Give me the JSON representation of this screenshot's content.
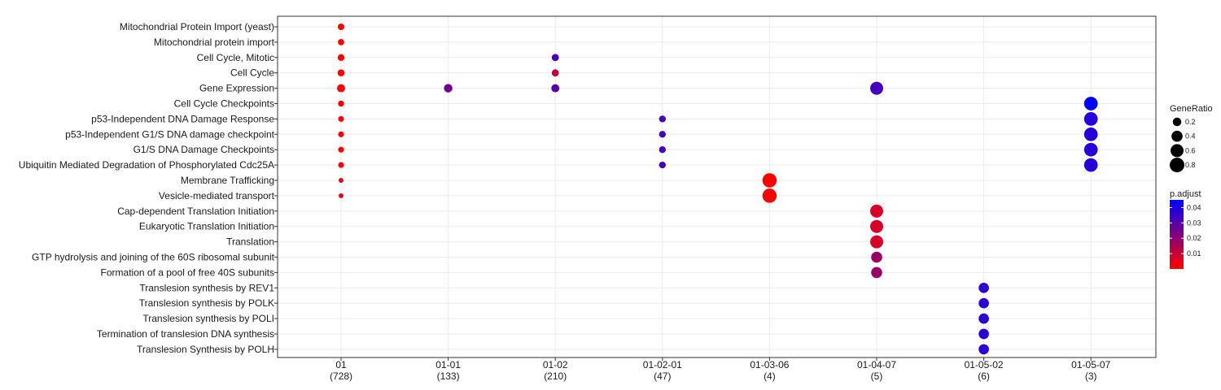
{
  "chart_data": {
    "type": "scatter",
    "title": "",
    "xlabel": "",
    "ylabel": "",
    "x_categories": [
      {
        "label": "01",
        "count": "(728)"
      },
      {
        "label": "01-01",
        "count": "(133)"
      },
      {
        "label": "01-02",
        "count": "(210)"
      },
      {
        "label": "01-02-01",
        "count": "(47)"
      },
      {
        "label": "01-03-06",
        "count": "(4)"
      },
      {
        "label": "01-04-07",
        "count": "(5)"
      },
      {
        "label": "01-05-02",
        "count": "(6)"
      },
      {
        "label": "01-05-07",
        "count": "(3)"
      }
    ],
    "y_categories": [
      "Mitochondrial Protein Import (yeast)",
      "Mitochondrial protein import",
      "Cell Cycle, Mitotic",
      "Cell Cycle",
      "Gene Expression",
      "Cell Cycle Checkpoints",
      "p53-Independent DNA Damage Response",
      "p53-Independent G1/S DNA damage checkpoint",
      "G1/S DNA Damage Checkpoints",
      "Ubiquitin Mediated Degradation of Phosphorylated Cdc25A",
      "Membrane Trafficking",
      "Vesicle-mediated transport",
      "Cap-dependent Translation Initiation",
      "Eukaryotic Translation Initiation",
      "Translation",
      "GTP hydrolysis and joining of the 60S ribosomal subunit",
      "Formation of a pool of free 40S subunits",
      "Translesion synthesis by REV1",
      "Translesion synthesis by POLK",
      "Translesion synthesis by POLI",
      "Termination of translesion DNA synthesis",
      "Translesion Synthesis by POLH"
    ],
    "points": [
      {
        "x": "01",
        "y": "Mitochondrial Protein Import (yeast)",
        "gene_ratio": 0.09,
        "p_adjust": 0.0005
      },
      {
        "x": "01",
        "y": "Mitochondrial protein import",
        "gene_ratio": 0.08,
        "p_adjust": 0.0005
      },
      {
        "x": "01",
        "y": "Cell Cycle, Mitotic",
        "gene_ratio": 0.1,
        "p_adjust": 0.0005
      },
      {
        "x": "01",
        "y": "Cell Cycle",
        "gene_ratio": 0.11,
        "p_adjust": 0.0005
      },
      {
        "x": "01",
        "y": "Gene Expression",
        "gene_ratio": 0.17,
        "p_adjust": 0.0005
      },
      {
        "x": "01",
        "y": "Cell Cycle Checkpoints",
        "gene_ratio": 0.07,
        "p_adjust": 0.0005
      },
      {
        "x": "01",
        "y": "p53-Independent DNA Damage Response",
        "gene_ratio": 0.06,
        "p_adjust": 0.0005
      },
      {
        "x": "01",
        "y": "p53-Independent G1/S DNA damage checkpoint",
        "gene_ratio": 0.06,
        "p_adjust": 0.0005
      },
      {
        "x": "01",
        "y": "G1/S DNA Damage Checkpoints",
        "gene_ratio": 0.06,
        "p_adjust": 0.0005
      },
      {
        "x": "01",
        "y": "Ubiquitin Mediated Degradation of Phosphorylated Cdc25A",
        "gene_ratio": 0.06,
        "p_adjust": 0.0005
      },
      {
        "x": "01",
        "y": "Membrane Trafficking",
        "gene_ratio": 0.03,
        "p_adjust": 0.005
      },
      {
        "x": "01",
        "y": "Vesicle-mediated transport",
        "gene_ratio": 0.03,
        "p_adjust": 0.005
      },
      {
        "x": "01-01",
        "y": "Gene Expression",
        "gene_ratio": 0.2,
        "p_adjust": 0.025
      },
      {
        "x": "01-02",
        "y": "Cell Cycle, Mitotic",
        "gene_ratio": 0.12,
        "p_adjust": 0.032
      },
      {
        "x": "01-02",
        "y": "Cell Cycle",
        "gene_ratio": 0.12,
        "p_adjust": 0.012
      },
      {
        "x": "01-02",
        "y": "Gene Expression",
        "gene_ratio": 0.17,
        "p_adjust": 0.03
      },
      {
        "x": "01-02-01",
        "y": "p53-Independent DNA Damage Response",
        "gene_ratio": 0.1,
        "p_adjust": 0.033
      },
      {
        "x": "01-02-01",
        "y": "p53-Independent G1/S DNA damage checkpoint",
        "gene_ratio": 0.1,
        "p_adjust": 0.033
      },
      {
        "x": "01-02-01",
        "y": "G1/S DNA Damage Checkpoints",
        "gene_ratio": 0.1,
        "p_adjust": 0.033
      },
      {
        "x": "01-02-01",
        "y": "Ubiquitin Mediated Degradation of Phosphorylated Cdc25A",
        "gene_ratio": 0.1,
        "p_adjust": 0.033
      },
      {
        "x": "01-03-06",
        "y": "Membrane Trafficking",
        "gene_ratio": 0.75,
        "p_adjust": 0.0005
      },
      {
        "x": "01-03-06",
        "y": "Vesicle-mediated transport",
        "gene_ratio": 0.75,
        "p_adjust": 0.0005
      },
      {
        "x": "01-04-07",
        "y": "Gene Expression",
        "gene_ratio": 0.6,
        "p_adjust": 0.033
      },
      {
        "x": "01-04-07",
        "y": "Cap-dependent Translation Initiation",
        "gene_ratio": 0.6,
        "p_adjust": 0.007
      },
      {
        "x": "01-04-07",
        "y": "Eukaryotic Translation Initiation",
        "gene_ratio": 0.6,
        "p_adjust": 0.007
      },
      {
        "x": "01-04-07",
        "y": "Translation",
        "gene_ratio": 0.6,
        "p_adjust": 0.007
      },
      {
        "x": "01-04-07",
        "y": "GTP hydrolysis and joining of the 60S ribosomal subunit",
        "gene_ratio": 0.4,
        "p_adjust": 0.018
      },
      {
        "x": "01-04-07",
        "y": "Formation of a pool of free 40S subunits",
        "gene_ratio": 0.4,
        "p_adjust": 0.018
      },
      {
        "x": "01-05-02",
        "y": "Translesion synthesis by REV1",
        "gene_ratio": 0.33,
        "p_adjust": 0.037
      },
      {
        "x": "01-05-02",
        "y": "Translesion synthesis by POLK",
        "gene_ratio": 0.33,
        "p_adjust": 0.037
      },
      {
        "x": "01-05-02",
        "y": "Translesion synthesis by POLI",
        "gene_ratio": 0.33,
        "p_adjust": 0.037
      },
      {
        "x": "01-05-02",
        "y": "Termination of translesion DNA synthesis",
        "gene_ratio": 0.33,
        "p_adjust": 0.037
      },
      {
        "x": "01-05-02",
        "y": "Translesion Synthesis by POLH",
        "gene_ratio": 0.33,
        "p_adjust": 0.037
      },
      {
        "x": "01-05-07",
        "y": "Cell Cycle Checkpoints",
        "gene_ratio": 0.67,
        "p_adjust": 0.045
      },
      {
        "x": "01-05-07",
        "y": "p53-Independent DNA Damage Response",
        "gene_ratio": 0.67,
        "p_adjust": 0.038
      },
      {
        "x": "01-05-07",
        "y": "p53-Independent G1/S DNA damage checkpoint",
        "gene_ratio": 0.67,
        "p_adjust": 0.038
      },
      {
        "x": "01-05-07",
        "y": "G1/S DNA Damage Checkpoints",
        "gene_ratio": 0.67,
        "p_adjust": 0.038
      },
      {
        "x": "01-05-07",
        "y": "Ubiquitin Mediated Degradation of Phosphorylated Cdc25A",
        "gene_ratio": 0.67,
        "p_adjust": 0.038
      }
    ],
    "size_legend": {
      "title": "GeneRatio",
      "values": [
        0.2,
        0.4,
        0.6,
        0.8
      ],
      "labels": [
        "0.2",
        "0.4",
        "0.6",
        "0.8"
      ]
    },
    "color_legend": {
      "title": "p.adjust",
      "range": [
        0,
        0.045
      ],
      "ticks": [
        0.01,
        0.02,
        0.03,
        0.04
      ],
      "tick_labels": [
        "0.01",
        "0.02",
        "0.03",
        "0.04"
      ],
      "low_color": "#ff0000",
      "high_color": "#0000ff"
    },
    "grid": true,
    "legend_position": "right"
  }
}
